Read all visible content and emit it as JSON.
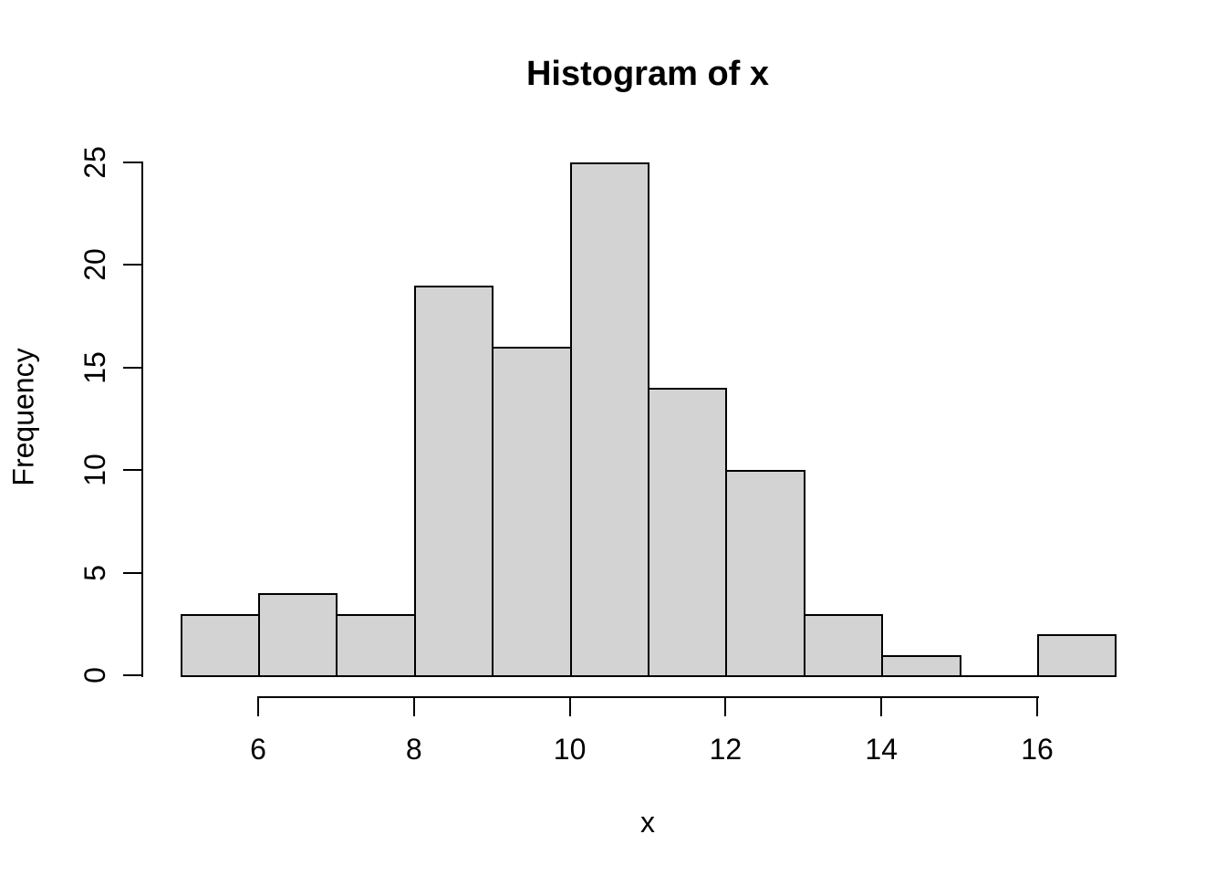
{
  "page": {
    "background": "#FFFFFF"
  },
  "chart_data": {
    "type": "bar",
    "subtype": "histogram",
    "title": "Histogram of x",
    "xlabel": "x",
    "ylabel": "Frequency",
    "bin_edges": [
      5,
      6,
      7,
      8,
      9,
      10,
      11,
      12,
      13,
      14,
      15,
      16,
      17
    ],
    "counts": [
      3,
      4,
      3,
      19,
      16,
      25,
      14,
      10,
      3,
      1,
      0,
      2
    ],
    "x_ticks": [
      6,
      8,
      10,
      12,
      14,
      16
    ],
    "y_ticks": [
      0,
      5,
      10,
      15,
      20,
      25
    ],
    "xlim": [
      5,
      17
    ],
    "ylim": [
      0,
      25
    ],
    "bar_fill": "#D3D3D3",
    "bar_border": "#000000",
    "axis_color": "#000000",
    "text_color": "#000000",
    "grid": false,
    "legend_position": "none"
  }
}
